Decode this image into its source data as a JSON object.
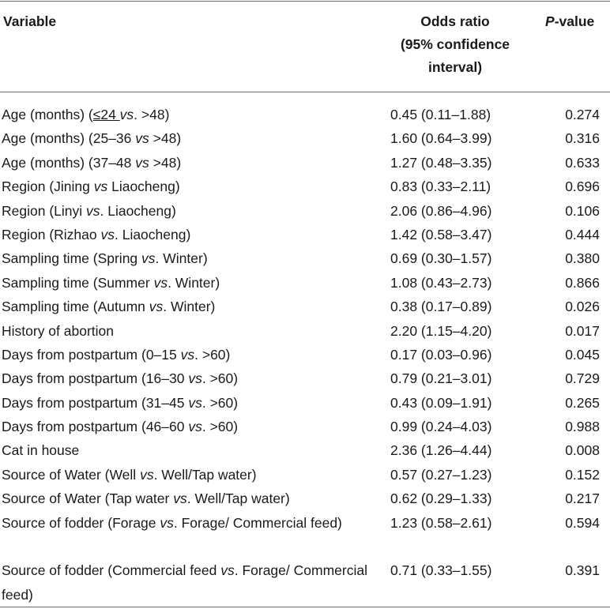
{
  "header": {
    "variable": "Variable",
    "odds_ratio_line1": "Odds ratio",
    "odds_ratio_line2": "(95% confidence",
    "odds_ratio_line3": "interval)",
    "pvalue_italic": "P",
    "pvalue_suffix": "-value"
  },
  "rows": [
    {
      "parts": [
        "Age (months) (",
        "≤24 ",
        "vs",
        ". >48)"
      ],
      "odds": "0.45 (0.11–1.88)",
      "p": "0.274"
    },
    {
      "parts": [
        "Age (months) (25–36 ",
        "",
        "vs",
        " >48)"
      ],
      "odds": "1.60 (0.64–3.99)",
      "p": "0.316"
    },
    {
      "parts": [
        "Age (months) (37–48 ",
        "",
        "vs",
        " >48)"
      ],
      "odds": "1.27 (0.48–3.35)",
      "p": "0.633"
    },
    {
      "parts": [
        "Region (Jining ",
        "",
        "vs",
        " Liaocheng)"
      ],
      "odds": "0.83 (0.33–2.11)",
      "p": "0.696"
    },
    {
      "parts": [
        "Region (Linyi ",
        "",
        "vs",
        ". Liaocheng)"
      ],
      "odds": "2.06 (0.86–4.96)",
      "p": "0.106"
    },
    {
      "parts": [
        "Region (Rizhao ",
        "",
        "vs",
        ". Liaocheng)"
      ],
      "odds": "1.42 (0.58–3.47)",
      "p": "0.444"
    },
    {
      "parts": [
        "Sampling time (Spring ",
        "",
        "vs",
        ". Winter)"
      ],
      "odds": "0.69 (0.30–1.57)",
      "p": "0.380"
    },
    {
      "parts": [
        "Sampling time (Summer ",
        "",
        "vs",
        ". Winter)"
      ],
      "odds": "1.08 (0.43–2.73)",
      "p": "0.866"
    },
    {
      "parts": [
        "Sampling time (Autumn ",
        "",
        "vs",
        ". Winter)"
      ],
      "odds": "0.38 (0.17–0.89)",
      "p": "0.026"
    },
    {
      "parts": [
        "History of abortion",
        "",
        "",
        ""
      ],
      "odds": "2.20 (1.15–4.20)",
      "p": "0.017"
    },
    {
      "parts": [
        "Days from postpartum (0–15 ",
        "",
        "vs",
        ". >60)"
      ],
      "odds": "0.17 (0.03–0.96)",
      "p": "0.045"
    },
    {
      "parts": [
        "Days from postpartum (16–30 ",
        "",
        "vs",
        ". >60)"
      ],
      "odds": "0.79 (0.21–3.01)",
      "p": "0.729"
    },
    {
      "parts": [
        "Days from postpartum (31–45 ",
        "",
        "vs",
        ". >60)"
      ],
      "odds": "0.43 (0.09–1.91)",
      "p": "0.265"
    },
    {
      "parts": [
        "Days from postpartum (46–60 ",
        "",
        "vs",
        ". >60)"
      ],
      "odds": "0.99 (0.24–4.03)",
      "p": "0.988"
    },
    {
      "parts": [
        "Cat in house",
        "",
        "",
        ""
      ],
      "odds": "2.36 (1.26–4.44)",
      "p": "0.008"
    },
    {
      "parts": [
        "Source of Water (Well ",
        "",
        "vs",
        ". Well/Tap water)"
      ],
      "odds": "0.57 (0.27–1.23)",
      "p": "0.152"
    },
    {
      "parts": [
        "Source of Water (Tap water ",
        "",
        "vs",
        ". Well/Tap water)"
      ],
      "odds": "0.62 (0.29–1.33)",
      "p": "0.217"
    },
    {
      "parts": [
        "Source of fodder (Forage ",
        "",
        "vs",
        ". Forage/ Commercial feed)"
      ],
      "odds": "1.23 (0.58–2.61)",
      "p": "0.594",
      "tall": true
    },
    {
      "parts": [
        "Source of fodder (Commercial feed ",
        "",
        "vs",
        ". Forage/ Commercial feed)"
      ],
      "odds": "0.71 (0.33–1.55)",
      "p": "0.391",
      "tall": true
    }
  ]
}
